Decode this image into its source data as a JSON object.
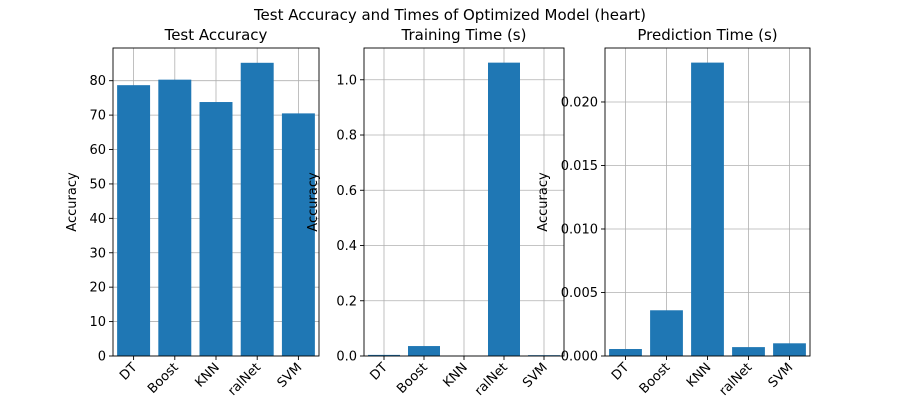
{
  "figure": {
    "suptitle": "Test Accuracy and Times of Optimized Model (heart)"
  },
  "colors": {
    "bar": "#1f77b4",
    "grid": "#b0b0b0",
    "axis": "#000000",
    "background": "#ffffff"
  },
  "chart_data": [
    {
      "type": "bar",
      "title": "Test Accuracy",
      "ylabel": "Accuracy",
      "xlabel": "",
      "categories": [
        "DT",
        "Boost",
        "KNN",
        "NeuralNet",
        "SVM"
      ],
      "category_labels": [
        "DT",
        "Boost",
        "KNN",
        "ralNet",
        "SVM"
      ],
      "values": [
        78.7,
        80.3,
        73.8,
        85.2,
        70.5
      ],
      "ylim": [
        0,
        89.5
      ],
      "yticks": [
        0,
        10,
        20,
        30,
        40,
        50,
        60,
        70,
        80
      ],
      "ytick_labels": [
        "0",
        "10",
        "20",
        "30",
        "40",
        "50",
        "60",
        "70",
        "80"
      ],
      "grid": true,
      "xtick_rotation": 45
    },
    {
      "type": "bar",
      "title": "Training Time (s)",
      "ylabel": "Accuracy",
      "xlabel": "",
      "categories": [
        "DT",
        "Boost",
        "KNN",
        "NeuralNet",
        "SVM"
      ],
      "category_labels": [
        "DT",
        "Boost",
        "KNN",
        "ralNet",
        "SVM"
      ],
      "values": [
        0.004,
        0.036,
        0.0005,
        1.062,
        0.003
      ],
      "ylim": [
        0,
        1.115
      ],
      "yticks": [
        0.0,
        0.2,
        0.4,
        0.6,
        0.8,
        1.0
      ],
      "ytick_labels": [
        "0.0",
        "0.2",
        "0.4",
        "0.6",
        "0.8",
        "1.0"
      ],
      "grid": true,
      "xtick_rotation": 45
    },
    {
      "type": "bar",
      "title": "Prediction Time (s)",
      "ylabel": "Accuracy",
      "xlabel": "",
      "categories": [
        "DT",
        "Boost",
        "KNN",
        "NeuralNet",
        "SVM"
      ],
      "category_labels": [
        "DT",
        "Boost",
        "KNN",
        "ralNet",
        "SVM"
      ],
      "values": [
        0.00055,
        0.0036,
        0.0231,
        0.0007,
        0.001
      ],
      "ylim": [
        0,
        0.02425
      ],
      "yticks": [
        0.0,
        0.005,
        0.01,
        0.015,
        0.02
      ],
      "ytick_labels": [
        "0.000",
        "0.005",
        "0.010",
        "0.015",
        "0.020"
      ],
      "grid": true,
      "xtick_rotation": 45
    }
  ]
}
